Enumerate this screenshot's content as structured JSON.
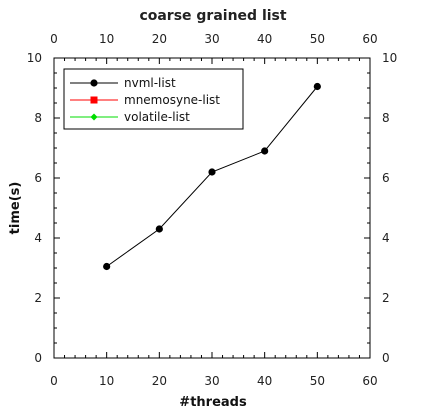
{
  "chart_data": {
    "type": "line",
    "title": "coarse grained list",
    "xlabel": "#threads",
    "ylabel": "time(s)",
    "xlim": [
      0,
      60
    ],
    "ylim": [
      0,
      10
    ],
    "x_ticks": [
      0,
      10,
      20,
      30,
      40,
      50,
      60
    ],
    "y_ticks": [
      0,
      2,
      4,
      6,
      8,
      10
    ],
    "mirror_axes": true,
    "grid": false,
    "legend_position": "top-left",
    "series": [
      {
        "name": "nvml-list",
        "color": "#000000",
        "marker": "circle",
        "x": [
          10,
          20,
          30,
          40,
          50
        ],
        "y": [
          3.05,
          4.3,
          6.2,
          6.9,
          9.05
        ]
      },
      {
        "name": "mnemosyne-list",
        "color": "#ff0000",
        "marker": "square",
        "x": [],
        "y": []
      },
      {
        "name": "volatile-list",
        "color": "#00dd00",
        "marker": "diamond",
        "x": [],
        "y": []
      }
    ]
  }
}
